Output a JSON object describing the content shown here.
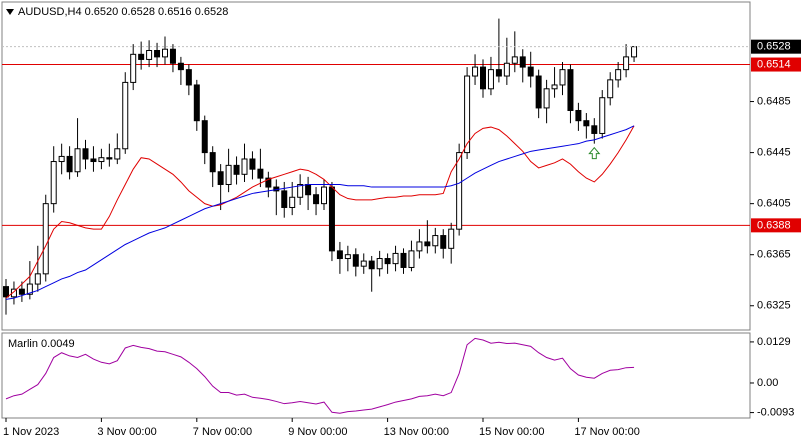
{
  "chart_data": {
    "type": "candlestick",
    "header": "AUDUSD,H4  0.6520 0.6528 0.6516 0.6528",
    "categories": [
      "1 Nov 2023",
      null,
      null,
      null,
      null,
      null,
      null,
      null,
      null,
      null,
      null,
      null,
      "3 Nov 00:00",
      null,
      null,
      null,
      null,
      null,
      null,
      null,
      null,
      null,
      null,
      null,
      "7 Nov 00:00",
      null,
      null,
      null,
      null,
      null,
      null,
      null,
      null,
      null,
      null,
      null,
      "9 Nov 00:00",
      null,
      null,
      null,
      null,
      null,
      null,
      null,
      null,
      null,
      null,
      null,
      "13 Nov 00:00",
      null,
      null,
      null,
      null,
      null,
      null,
      null,
      null,
      null,
      null,
      null,
      "15 Nov 00:00",
      null,
      null,
      null,
      null,
      null,
      null,
      null,
      null,
      null,
      null,
      null,
      "17 Nov 00:00",
      null,
      null,
      null,
      null,
      null,
      null,
      null
    ],
    "candles": [
      [
        0.634,
        0.6346,
        0.6318,
        0.6332
      ],
      [
        0.6332,
        0.6344,
        0.6326,
        0.6338
      ],
      [
        0.6338,
        0.6344,
        0.6328,
        0.6334
      ],
      [
        0.6334,
        0.636,
        0.633,
        0.6342
      ],
      [
        0.6342,
        0.6372,
        0.6336,
        0.635
      ],
      [
        0.635,
        0.6412,
        0.6344,
        0.6405
      ],
      [
        0.6405,
        0.645,
        0.6398,
        0.6438
      ],
      [
        0.6438,
        0.6452,
        0.6428,
        0.6442
      ],
      [
        0.6442,
        0.645,
        0.6424,
        0.643
      ],
      [
        0.643,
        0.6472,
        0.6426,
        0.6448
      ],
      [
        0.6448,
        0.6455,
        0.6432,
        0.644
      ],
      [
        0.644,
        0.645,
        0.643,
        0.6438
      ],
      [
        0.6438,
        0.6448,
        0.6432,
        0.6441
      ],
      [
        0.6441,
        0.6452,
        0.6434,
        0.644
      ],
      [
        0.644,
        0.646,
        0.6436,
        0.6448
      ],
      [
        0.6448,
        0.6508,
        0.6444,
        0.65
      ],
      [
        0.65,
        0.653,
        0.6494,
        0.6522
      ],
      [
        0.6522,
        0.6532,
        0.651,
        0.6518
      ],
      [
        0.6518,
        0.6533,
        0.6512,
        0.6525
      ],
      [
        0.6525,
        0.6531,
        0.6512,
        0.652
      ],
      [
        0.652,
        0.6536,
        0.6514,
        0.6526
      ],
      [
        0.6526,
        0.653,
        0.6508,
        0.6515
      ],
      [
        0.6515,
        0.652,
        0.6498,
        0.651
      ],
      [
        0.651,
        0.6514,
        0.649,
        0.6498
      ],
      [
        0.6498,
        0.6502,
        0.6462,
        0.647
      ],
      [
        0.647,
        0.6474,
        0.6436,
        0.6445
      ],
      [
        0.6445,
        0.645,
        0.6418,
        0.643
      ],
      [
        0.643,
        0.6436,
        0.64,
        0.642
      ],
      [
        0.642,
        0.6448,
        0.6414,
        0.6435
      ],
      [
        0.6435,
        0.6442,
        0.642,
        0.6428
      ],
      [
        0.6428,
        0.6452,
        0.6422,
        0.644
      ],
      [
        0.644,
        0.6446,
        0.6424,
        0.6432
      ],
      [
        0.6432,
        0.6448,
        0.6418,
        0.6425
      ],
      [
        0.6425,
        0.643,
        0.641,
        0.6418
      ],
      [
        0.6418,
        0.6424,
        0.6396,
        0.6415
      ],
      [
        0.6415,
        0.6422,
        0.6394,
        0.6402
      ],
      [
        0.6402,
        0.6422,
        0.6396,
        0.641
      ],
      [
        0.641,
        0.6428,
        0.6404,
        0.642
      ],
      [
        0.642,
        0.6426,
        0.64,
        0.6412
      ],
      [
        0.6412,
        0.6418,
        0.6396,
        0.6405
      ],
      [
        0.6405,
        0.6424,
        0.64,
        0.6418
      ],
      [
        0.6418,
        0.6422,
        0.636,
        0.6368
      ],
      [
        0.6368,
        0.6375,
        0.635,
        0.6362
      ],
      [
        0.6362,
        0.6372,
        0.6352,
        0.6365
      ],
      [
        0.6365,
        0.637,
        0.6348,
        0.6356
      ],
      [
        0.6356,
        0.6366,
        0.635,
        0.636
      ],
      [
        0.636,
        0.6364,
        0.6336,
        0.6354
      ],
      [
        0.6354,
        0.6368,
        0.6348,
        0.6362
      ],
      [
        0.6362,
        0.6366,
        0.635,
        0.6358
      ],
      [
        0.6358,
        0.6372,
        0.6352,
        0.6366
      ],
      [
        0.6366,
        0.637,
        0.635,
        0.6355
      ],
      [
        0.6355,
        0.6376,
        0.6352,
        0.6368
      ],
      [
        0.6368,
        0.6385,
        0.6362,
        0.6375
      ],
      [
        0.6375,
        0.6392,
        0.6366,
        0.6372
      ],
      [
        0.6372,
        0.6386,
        0.6366,
        0.638
      ],
      [
        0.638,
        0.6385,
        0.6362,
        0.637
      ],
      [
        0.637,
        0.639,
        0.6358,
        0.6385
      ],
      [
        0.6385,
        0.6452,
        0.638,
        0.6445
      ],
      [
        0.6445,
        0.6512,
        0.644,
        0.6505
      ],
      [
        0.6505,
        0.6522,
        0.6498,
        0.6512
      ],
      [
        0.6512,
        0.6518,
        0.6488,
        0.6495
      ],
      [
        0.6495,
        0.652,
        0.649,
        0.651
      ],
      [
        0.651,
        0.655,
        0.65,
        0.6505
      ],
      [
        0.6505,
        0.6535,
        0.6498,
        0.6515
      ],
      [
        0.6515,
        0.654,
        0.6508,
        0.652
      ],
      [
        0.652,
        0.6526,
        0.65,
        0.6512
      ],
      [
        0.6512,
        0.6524,
        0.6496,
        0.6505
      ],
      [
        0.6505,
        0.651,
        0.6472,
        0.648
      ],
      [
        0.648,
        0.6502,
        0.6468,
        0.6495
      ],
      [
        0.6495,
        0.6512,
        0.6488,
        0.6498
      ],
      [
        0.6498,
        0.6516,
        0.649,
        0.651
      ],
      [
        0.651,
        0.6514,
        0.6468,
        0.6478
      ],
      [
        0.6478,
        0.6484,
        0.6462,
        0.647
      ],
      [
        0.647,
        0.6476,
        0.6456,
        0.6466
      ],
      [
        0.6466,
        0.6472,
        0.6452,
        0.646
      ],
      [
        0.646,
        0.6494,
        0.6456,
        0.6488
      ],
      [
        0.6488,
        0.6508,
        0.6482,
        0.6502
      ],
      [
        0.6502,
        0.6516,
        0.6496,
        0.651
      ],
      [
        0.651,
        0.653,
        0.6504,
        0.652
      ],
      [
        0.652,
        0.6528,
        0.6516,
        0.6528
      ]
    ],
    "ma_lines": [
      {
        "color": "#e00000",
        "values": [
          0.6331,
          0.6336,
          0.6342,
          0.6348,
          0.636,
          0.6372,
          0.6385,
          0.6391,
          0.639,
          0.6388,
          0.6386,
          0.6385,
          0.6385,
          0.6395,
          0.6408,
          0.642,
          0.6432,
          0.6441,
          0.644,
          0.6436,
          0.6432,
          0.6428,
          0.6422,
          0.6415,
          0.641,
          0.6405,
          0.6403,
          0.6404,
          0.6407,
          0.641,
          0.6414,
          0.6418,
          0.6421,
          0.6424,
          0.6426,
          0.6428,
          0.643,
          0.6432,
          0.6431,
          0.6428,
          0.6424,
          0.6418,
          0.6412,
          0.6409,
          0.6408,
          0.6408,
          0.6408,
          0.6409,
          0.641,
          0.641,
          0.6411,
          0.6411,
          0.6412,
          0.6412,
          0.6412,
          0.6413,
          0.643,
          0.644,
          0.6452,
          0.646,
          0.6464,
          0.6465,
          0.6463,
          0.6458,
          0.6452,
          0.6446,
          0.6438,
          0.6433,
          0.6435,
          0.6437,
          0.644,
          0.6436,
          0.643,
          0.6425,
          0.6422,
          0.6428,
          0.6436,
          0.6445,
          0.6455,
          0.6466
        ]
      },
      {
        "color": "#0000e0",
        "values": [
          0.633,
          0.6331,
          0.6333,
          0.6335,
          0.6337,
          0.634,
          0.6343,
          0.6346,
          0.6348,
          0.6351,
          0.6353,
          0.6357,
          0.6361,
          0.6365,
          0.6369,
          0.6373,
          0.6376,
          0.6379,
          0.6382,
          0.6384,
          0.6386,
          0.6389,
          0.6392,
          0.6395,
          0.6398,
          0.6401,
          0.6403,
          0.6405,
          0.6407,
          0.6409,
          0.6411,
          0.6413,
          0.6414,
          0.6415,
          0.6416,
          0.6417,
          0.6418,
          0.6419,
          0.642,
          0.642,
          0.642,
          0.642,
          0.642,
          0.6419,
          0.6419,
          0.6419,
          0.6418,
          0.6418,
          0.6418,
          0.6418,
          0.6418,
          0.6418,
          0.6418,
          0.6418,
          0.6418,
          0.6418,
          0.6419,
          0.6421,
          0.6425,
          0.6429,
          0.6432,
          0.6435,
          0.6438,
          0.644,
          0.6442,
          0.6444,
          0.6446,
          0.6447,
          0.6448,
          0.6449,
          0.645,
          0.6451,
          0.6452,
          0.6454,
          0.6455,
          0.6457,
          0.6459,
          0.6461,
          0.6463,
          0.6466
        ]
      }
    ],
    "levels": [
      {
        "value": 0.6514,
        "color": "#e00000"
      },
      {
        "value": 0.6388,
        "color": "#e00000"
      }
    ],
    "ylim": [
      0.6306,
      0.6563
    ],
    "yticks": [
      0.6325,
      0.6365,
      0.6405,
      0.6445,
      0.6485
    ],
    "indicator": {
      "label": "Marlin 0.0049",
      "color": "#a000a0",
      "values": [
        -0.005,
        -0.004,
        -0.0035,
        -0.002,
        -0.0005,
        0.003,
        0.008,
        0.0095,
        0.0085,
        0.008,
        0.009,
        0.0075,
        0.0065,
        0.006,
        0.007,
        0.011,
        0.0118,
        0.0112,
        0.0108,
        0.01,
        0.0098,
        0.009,
        0.0082,
        0.0065,
        0.0045,
        0.002,
        -0.001,
        -0.003,
        -0.003,
        -0.0038,
        -0.0035,
        -0.0045,
        -0.0048,
        -0.0052,
        -0.0058,
        -0.0065,
        -0.0062,
        -0.0058,
        -0.0062,
        -0.0066,
        -0.006,
        -0.0092,
        -0.0095,
        -0.009,
        -0.0088,
        -0.0085,
        -0.0082,
        -0.0075,
        -0.0068,
        -0.006,
        -0.0055,
        -0.005,
        -0.0042,
        -0.004,
        -0.0035,
        -0.004,
        -0.003,
        0.003,
        0.012,
        0.014,
        0.0135,
        0.0125,
        0.0128,
        0.0124,
        0.0125,
        0.012,
        0.0115,
        0.0095,
        0.008,
        0.0072,
        0.0078,
        0.0045,
        0.0025,
        0.0018,
        0.0015,
        0.003,
        0.004,
        0.0042,
        0.0048,
        0.0049
      ],
      "ylim": [
        -0.011,
        0.0157
      ],
      "yticks": [
        0.0129,
        {
          "value": 0,
          "label": "0.00"
        },
        -0.0093
      ]
    }
  }
}
